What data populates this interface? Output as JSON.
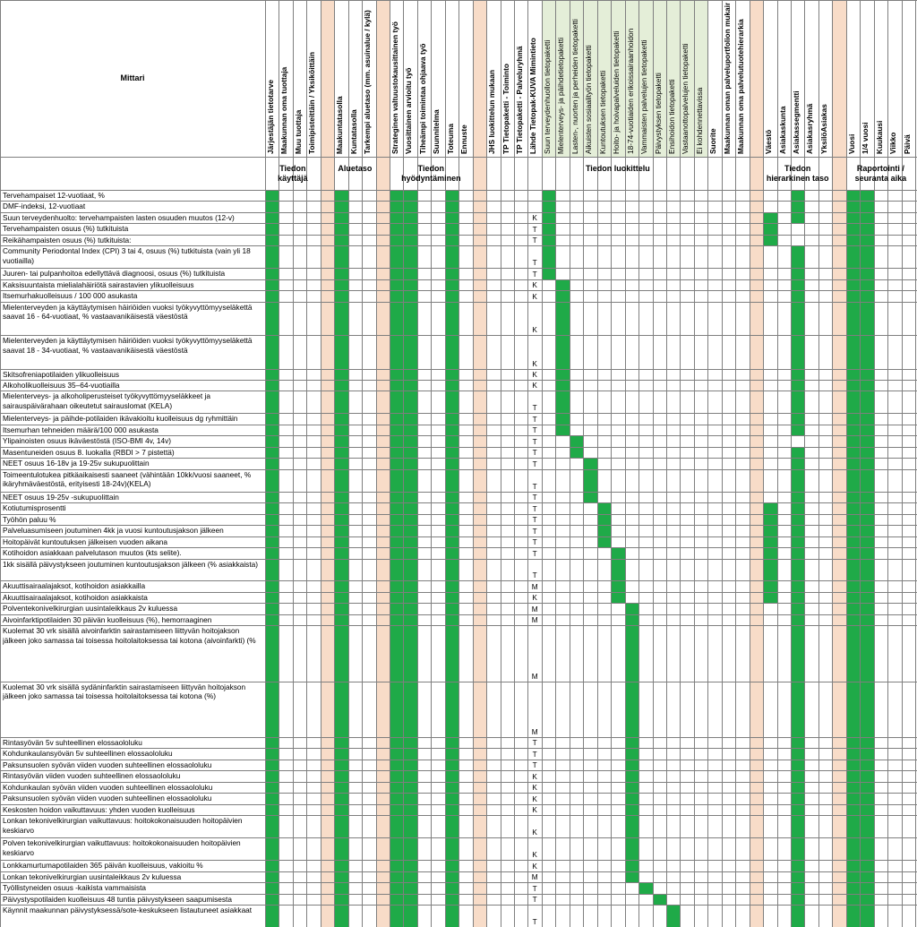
{
  "header": {
    "mittari_label": "Mittari",
    "columns": [
      {
        "label": "Järjestäjän tietotarve",
        "bold": true
      },
      {
        "label": "Maakunnan oma tuottaja",
        "bold": true
      },
      {
        "label": "Muu tuottaja",
        "bold": true
      },
      {
        "label": "Toimipisteittäin / Yksiköittäin",
        "bold": true
      },
      {
        "label": "",
        "sep": true
      },
      {
        "label": "Maakuntatasolla",
        "bold": true
      },
      {
        "label": "Kuntatasolla",
        "bold": true
      },
      {
        "label": "Tarkempi aluetaso (mm. asuinalue / kylä)",
        "bold": true
      },
      {
        "label": "",
        "sep": true
      },
      {
        "label": "Strateginen valtuustokausittainen työ",
        "bold": true
      },
      {
        "label": "Vuosittainen arvioitu työ",
        "bold": true
      },
      {
        "label": "Tiheämpi toimintaa ohjaava työ",
        "bold": true
      },
      {
        "label": "Suunnitelma",
        "bold": true
      },
      {
        "label": "Toteuma",
        "bold": true
      },
      {
        "label": "Ennuste",
        "bold": true
      },
      {
        "label": "",
        "sep": true
      },
      {
        "label": "JHS luokittelun mukaan",
        "bold": true
      },
      {
        "label": "TP Tietopaketti - Toiminto",
        "bold": true
      },
      {
        "label": "TP Tietopaketti - Palveluryhmä",
        "bold": true
      },
      {
        "label": "Lähde Tietopak-KUVA Mimintieto",
        "bold": true
      },
      {
        "label": "Suun terveydenhuollon tietopaketti",
        "bold": false,
        "light": true
      },
      {
        "label": "Mielenterveys- ja päihdetietopaketti",
        "bold": false,
        "light": true
      },
      {
        "label": "Lasten-, nuorten ja perheiden tietopaketti",
        "bold": false,
        "light": true
      },
      {
        "label": "Aikuisten sosiaalityön tietopaketti",
        "bold": false,
        "light": true
      },
      {
        "label": "Kuntoutuksen tietopaketti",
        "bold": false,
        "light": true
      },
      {
        "label": "Hoito- ja hoivapalveluiden tietopaketti",
        "bold": false,
        "light": true
      },
      {
        "label": "18-74-vuotiaiden erikoissairaanhoidon",
        "bold": false,
        "light": true
      },
      {
        "label": "Vammaisten palvelujen tietopaketti",
        "bold": false,
        "light": true
      },
      {
        "label": "Päivystyksen tietopaketti",
        "bold": false,
        "light": true
      },
      {
        "label": "Ensihoidon tietopaketti",
        "bold": false,
        "light": true
      },
      {
        "label": "Vastaanottopalvelujen tietopaketti",
        "bold": false,
        "light": true
      },
      {
        "label": "Ei kohdennettavissa",
        "bold": false,
        "light": true
      },
      {
        "label": "Suorite",
        "bold": true
      },
      {
        "label": "Maakunnan oman palveluportfolion mukainen",
        "bold": true
      },
      {
        "label": "Maakunnan oma palvelutuotehierarkia",
        "bold": true
      },
      {
        "label": "",
        "sep": true
      },
      {
        "label": "Väestö",
        "bold": true
      },
      {
        "label": "Asiakaskunta",
        "bold": true
      },
      {
        "label": "Asiakassegmentti",
        "bold": true
      },
      {
        "label": "Asiakasryhmä",
        "bold": true
      },
      {
        "label": "YksilöAsiakas",
        "bold": true
      },
      {
        "label": "",
        "sep": true
      },
      {
        "label": "Vuosi",
        "bold": true
      },
      {
        "label": "1/4 vuosi",
        "bold": true
      },
      {
        "label": "Kuukausi",
        "bold": true
      },
      {
        "label": "Viikko",
        "bold": true
      },
      {
        "label": "Päivä",
        "bold": true
      }
    ],
    "groups": [
      {
        "label": "Tiedon käyttäjä",
        "from": 0,
        "to": 3
      },
      {
        "label": "Aluetaso",
        "from": 5,
        "to": 7
      },
      {
        "label": "Tiedon hyödyntäminen",
        "from": 9,
        "to": 14
      },
      {
        "label": "Tiedon luokittelu",
        "from": 16,
        "to": 34
      },
      {
        "label": "Tiedon hierarkinen taso",
        "from": 36,
        "to": 40
      },
      {
        "label": "Raportointi / seuranta aika",
        "from": 42,
        "to": 46
      }
    ]
  },
  "base_filled_columns": [
    0,
    5,
    9,
    10,
    13,
    42,
    43
  ],
  "colors": {
    "filled": "#1faa48",
    "separator": "#f8dcc8",
    "light_header": "#e4eed8",
    "grid": "#7f7f7f"
  },
  "rows": [
    {
      "text": "Tervehampaiset 12-vuotiaat, %",
      "code": "",
      "fill": [
        20,
        38
      ],
      "lines": 1
    },
    {
      "text": "DMF-indeksi, 12-vuotiaat",
      "code": "",
      "fill": [
        20,
        38
      ],
      "lines": 1
    },
    {
      "text": "Suun terveydenhuolto: tervehampaisten lasten osuuden muutos (12-v)",
      "code": "K",
      "fill": [
        20,
        36,
        38
      ],
      "lines": 1
    },
    {
      "text": "Tervehampaisten osuus (%) tutkituista",
      "code": "T",
      "fill": [
        20,
        36
      ],
      "lines": 1
    },
    {
      "text": "Reikähampaisten osuus (%) tutkituista:",
      "code": "T",
      "fill": [
        20,
        36
      ],
      "lines": 1
    },
    {
      "text": "Community Periodontal Index (CPI) 3 tai 4, osuus (%) tutkituista (vain yli 18 vuotiailla)",
      "code": "T",
      "fill": [
        20,
        38
      ],
      "lines": 2
    },
    {
      "text": "Juuren- tai pulpanhoitoa edellyttävä diagnoosi, osuus (%) tutkituista",
      "code": "T",
      "fill": [
        20,
        38
      ],
      "lines": 1
    },
    {
      "text": "Kaksisuuntaista mielialahäiriötä sairastavien ylikuolleisuus",
      "code": "K",
      "fill": [
        21,
        38
      ],
      "lines": 1
    },
    {
      "text": "Itsemurhakuolleisuus / 100 000 asukasta",
      "code": "K",
      "fill": [
        21,
        38
      ],
      "lines": 1
    },
    {
      "text": "Mielenterveyden ja käyttäytymisen häiriöiden vuoksi työkyvyttömyyseläkettä saavat 16 - 64-vuotiaat, % vastaavanikäisestä väestöstä",
      "code": "K",
      "fill": [
        21,
        38
      ],
      "lines": 3
    },
    {
      "text": "Mielenterveyden ja käyttäytymisen häiriöiden vuoksi työkyvyttömyyseläkettä saavat 18 - 34-vuotiaat, % vastaavanikäisestä väestöstä",
      "code": "K",
      "fill": [
        21,
        38
      ],
      "lines": 3
    },
    {
      "text": "Skitsofreniapotilaiden ylikuolleisuus",
      "code": "K",
      "fill": [
        21,
        38
      ],
      "lines": 1
    },
    {
      "text": "Alkoholikuolleisuus 35–64-vuotiailla",
      "code": "K",
      "fill": [
        21,
        38
      ],
      "lines": 1
    },
    {
      "text": "Mielenterveys- ja alkoholiperusteiset työkyvyttömyyseläkkeet ja sairauspäivärahaan oikeutetut sairauslomat (KELA)",
      "code": "T",
      "fill": [
        21,
        38
      ],
      "lines": 2
    },
    {
      "text": "Mielenterveys- ja päihde-potilaiden ikävakioitu kuolleisuus dg ryhmittäin",
      "code": "T",
      "fill": [
        21,
        38
      ],
      "lines": 1
    },
    {
      "text": "Itsemurhan tehneiden määrä/100 000 asukasta",
      "code": "T",
      "fill": [
        21,
        38
      ],
      "lines": 1
    },
    {
      "text": "Ylipainoisten osuus ikäväestöstä (ISO-BMI 4v, 14v)",
      "code": "T",
      "fill": [
        22
      ],
      "lines": 1
    },
    {
      "text": "Masentuneiden osuus 8. luokalla (RBDI > 7 pistettä)",
      "code": "T",
      "fill": [
        22,
        38
      ],
      "lines": 1
    },
    {
      "text": "NEET osuus 16-18v ja 19-25v sukupuolittain",
      "code": "T",
      "fill": [
        23,
        38
      ],
      "lines": 1
    },
    {
      "text": "Toimeentulotukea pitkäaikaisesti saaneet (vähintään 10kk/vuosi saaneet, % ikäryhmäväestöstä, erityisesti 18-24v)(KELA)",
      "code": "T",
      "fill": [
        23,
        38
      ],
      "lines": 2
    },
    {
      "text": "NEET osuus 19-25v -sukupuolittain",
      "code": "T",
      "fill": [
        23,
        38
      ],
      "lines": 1
    },
    {
      "text": "Kotiutumisprosentti",
      "code": "T",
      "fill": [
        24,
        36,
        38
      ],
      "lines": 1
    },
    {
      "text": "Työhön paluu %",
      "code": "T",
      "fill": [
        24,
        36,
        38
      ],
      "lines": 1
    },
    {
      "text": "Palveluasumiseen joutuminen 4kk ja vuosi kuntoutusjakson jälkeen",
      "code": "T",
      "fill": [
        24,
        36,
        38
      ],
      "lines": 1
    },
    {
      "text": "Hoitopäivät kuntoutuksen jälkeisen vuoden aikana",
      "code": "T",
      "fill": [
        24,
        36,
        38
      ],
      "lines": 1
    },
    {
      "text": "Kotihoidon asiakkaan palvelutason muutos (kts selite).",
      "code": "T",
      "fill": [
        25,
        36,
        38
      ],
      "lines": 1
    },
    {
      "text": "1kk sisällä päivystykseen joutuminen kuntoutusjakson jälkeen (% asiakkaista)",
      "code": "T",
      "fill": [
        25,
        36,
        38
      ],
      "lines": 2
    },
    {
      "text": "Akuuttisairaalajaksot, kotihoidon asiakkailla",
      "code": "M",
      "fill": [
        25,
        36,
        38
      ],
      "lines": 1
    },
    {
      "text": "Akuuttisairaalajaksot, kotihoidon asiakkaista",
      "code": "K",
      "fill": [
        25,
        36,
        38
      ],
      "lines": 1
    },
    {
      "text": "Polventekonivelkirurgian uusintaleikkaus 2v kuluessa",
      "code": "M",
      "fill": [
        26,
        38
      ],
      "lines": 1
    },
    {
      "text": "Aivoinfarktipotilaiden 30 päivän kuolleisuus (%), hemorraaginen",
      "code": "M",
      "fill": [
        26,
        38
      ],
      "lines": 1
    },
    {
      "text": "Kuolemat 30 vrk sisällä aivoinfarktin sairastamiseen liittyvän hoitojakson jälkeen joko samassa tai toisessa hoitolaitoksessa tai kotona (aivoinfarkti) (%",
      "code": "M",
      "fill": [
        26,
        38
      ],
      "lines": 5
    },
    {
      "text": "Kuolemat 30 vrk sisällä sydäninfarktin sairastamiseen liittyvän hoitojakson jälkeen joko samassa tai toisessa hoitolaitoksessa tai kotona (%)",
      "code": "M",
      "fill": [
        26,
        38
      ],
      "lines": 5
    },
    {
      "text": "Rintasyövän 5v suhteellinen elossaololuku",
      "code": "T",
      "fill": [
        26,
        38
      ],
      "lines": 1
    },
    {
      "text": "Kohdunkaulansyövän 5v suhteellinen elossaololuku",
      "code": "T",
      "fill": [
        26,
        38
      ],
      "lines": 1
    },
    {
      "text": "Paksunsuolen syövän viiden vuoden suhteellinen elossaololuku",
      "code": "T",
      "fill": [
        26,
        38
      ],
      "lines": 1
    },
    {
      "text": "Rintasyövän viiden vuoden suhteellinen elossaololuku",
      "code": "K",
      "fill": [
        26,
        38
      ],
      "lines": 1
    },
    {
      "text": "Kohdunkaulan syövän viiden vuoden suhteellinen elossaololuku",
      "code": "K",
      "fill": [
        26,
        38
      ],
      "lines": 1
    },
    {
      "text": "Paksunsuolen syövän viiden vuoden suhteellinen elossaololuku",
      "code": "K",
      "fill": [
        26,
        38
      ],
      "lines": 1
    },
    {
      "text": "Keskosten hoidon vaikuttavuus: yhden vuoden kuolleisuus",
      "code": "K",
      "fill": [
        26,
        38
      ],
      "lines": 1
    },
    {
      "text": "Lonkan tekonivelkirurgian vaikuttavuus: hoitokokonaisuuden hoitopäivien keskiarvo",
      "code": "K",
      "fill": [
        26,
        38
      ],
      "lines": 2
    },
    {
      "text": "Polven tekonivelkirurgian vaikuttavuus: hoitokokonaisuuden hoitopäivien keskiarvo",
      "code": "K",
      "fill": [
        26,
        38
      ],
      "lines": 2
    },
    {
      "text": "Lonkkamurtumapotilaiden 365 päivän kuolleisuus, vakioitu %",
      "code": "K",
      "fill": [
        26,
        38
      ],
      "lines": 1
    },
    {
      "text": "Lonkan tekonivelkirurgian uusintaleikkaus 2v kuluessa",
      "code": "M",
      "fill": [
        26,
        38
      ],
      "lines": 1
    },
    {
      "text": "Työllistyneiden osuus -kaikista vammaisista",
      "code": "T",
      "fill": [
        27,
        38
      ],
      "lines": 1
    },
    {
      "text": "Päivystyspotilaiden kuolleisuus 48 tuntia päivystykseen saapumisesta",
      "code": "T",
      "fill": [
        28,
        38
      ],
      "lines": 1
    },
    {
      "text": "Käynnit maakunnan päivystyksessä/sote-keskukseen listautuneet asiakkaat",
      "code": "T",
      "fill": [
        29,
        38
      ],
      "lines": 2
    }
  ]
}
